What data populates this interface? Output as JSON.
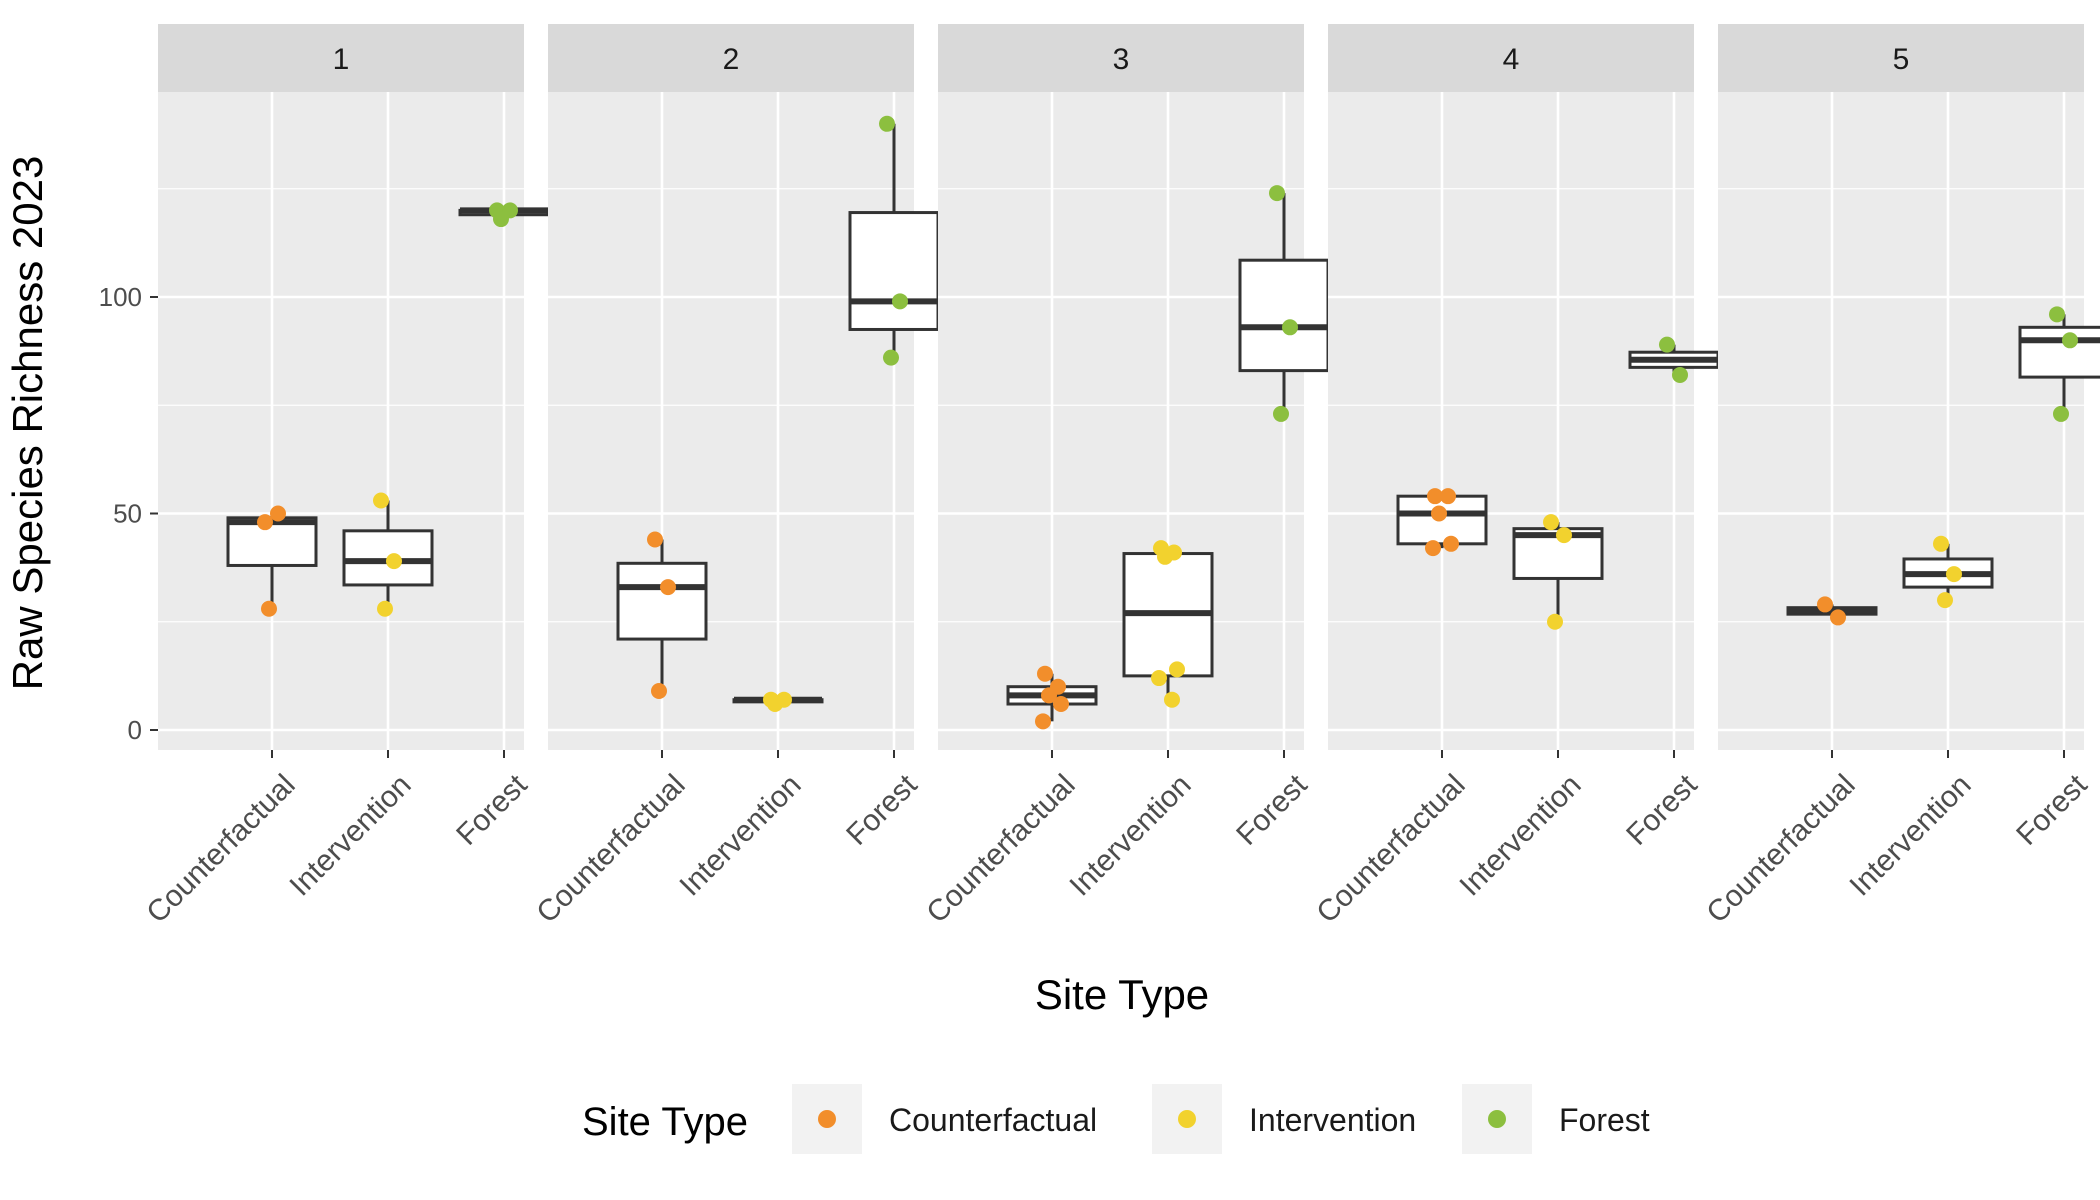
{
  "chart_data": {
    "type": "box",
    "facet_labels": [
      "1",
      "2",
      "3",
      "4",
      "5"
    ],
    "categories": [
      "Counterfactual",
      "Intervention",
      "Forest"
    ],
    "xlabel": "Site Type",
    "ylabel": "Raw Species Richness 2023",
    "ylim": [
      -5,
      164
    ],
    "yticks": [
      0,
      50,
      100
    ],
    "grid": true,
    "legend": {
      "title": "Site Type",
      "placement": "bottom",
      "entries": [
        "Counterfactual",
        "Intervention",
        "Forest"
      ]
    },
    "colors": {
      "Counterfactual": "#F28E2B",
      "Intervention": "#F2D22E",
      "Forest": "#8CBF3F",
      "panel_bg": "#EBEBEB",
      "strip_bg": "#D9D9D9",
      "box_line": "#333333"
    },
    "facets": [
      {
        "label": "1",
        "Counterfactual": {
          "points": [
            48,
            50,
            28
          ],
          "box": [
            28,
            38,
            48,
            49,
            50
          ]
        },
        "Intervention": {
          "points": [
            53,
            39,
            28
          ],
          "box": [
            28,
            33.5,
            39,
            46,
            53
          ]
        },
        "Forest": {
          "points": [
            120,
            120,
            118
          ],
          "box": [
            118,
            119,
            120,
            120,
            120
          ]
        }
      },
      {
        "label": "2",
        "Counterfactual": {
          "points": [
            44,
            33,
            9
          ],
          "box": [
            9,
            21,
            33,
            38.5,
            44
          ]
        },
        "Intervention": {
          "points": [
            7,
            7,
            6
          ],
          "box": [
            6,
            6.5,
            7,
            7,
            7
          ]
        },
        "Forest": {
          "points": [
            140,
            99,
            86
          ],
          "box": [
            86,
            92.5,
            99,
            119.5,
            140
          ]
        }
      },
      {
        "label": "3",
        "Counterfactual": {
          "points": [
            13,
            10,
            8,
            6,
            2
          ],
          "box": [
            2,
            6,
            8,
            10,
            13
          ]
        },
        "Intervention": {
          "points": [
            42,
            41,
            40,
            14,
            12,
            7
          ],
          "box": [
            7,
            12.5,
            27,
            40.75,
            42
          ]
        },
        "Forest": {
          "points": [
            124,
            93,
            73
          ],
          "box": [
            73,
            83,
            93,
            108.5,
            124
          ]
        }
      },
      {
        "label": "4",
        "Counterfactual": {
          "points": [
            54,
            54,
            50,
            43,
            42
          ],
          "box": [
            42,
            43,
            50,
            54,
            54
          ]
        },
        "Intervention": {
          "points": [
            48,
            45,
            25
          ],
          "box": [
            25,
            35,
            45,
            46.5,
            48
          ]
        },
        "Forest": {
          "points": [
            89,
            82
          ],
          "box": [
            82,
            83.75,
            85.5,
            87.25,
            89
          ]
        }
      },
      {
        "label": "5",
        "Counterfactual": {
          "points": [
            29,
            26
          ],
          "box": [
            26,
            26.75,
            27.5,
            28.25,
            29
          ]
        },
        "Intervention": {
          "points": [
            43,
            36,
            30
          ],
          "box": [
            30,
            33,
            36,
            39.5,
            43
          ]
        },
        "Forest": {
          "points": [
            96,
            90,
            73
          ],
          "box": [
            73,
            81.5,
            90,
            93,
            96
          ]
        }
      }
    ]
  }
}
